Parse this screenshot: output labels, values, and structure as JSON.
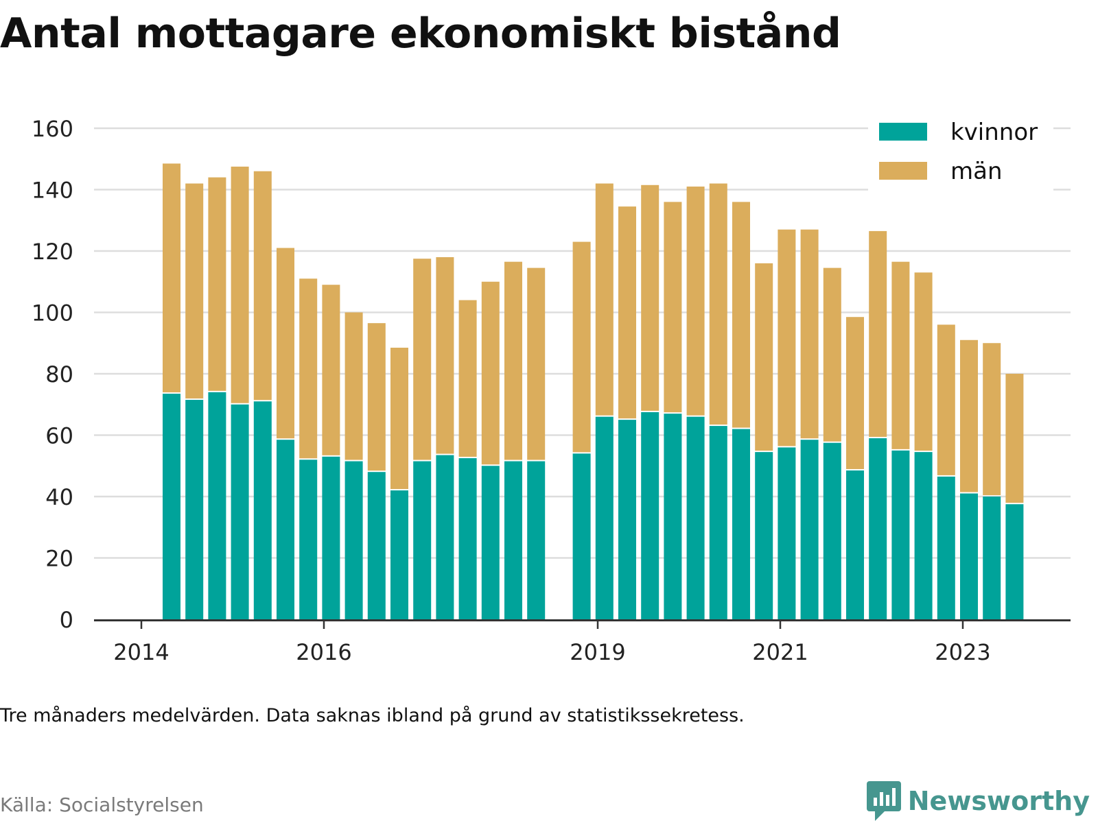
{
  "title": "Antal mottagare ekonomiskt bistånd",
  "note": "Tre månaders medelvärden. Data saknas ibland på grund av statistikssekretess.",
  "source": "Källa: Socialstyrelsen",
  "brand": "Newsworthy",
  "colors": {
    "kvinnor": "#00a39a",
    "man": "#dbad5c",
    "grid": "#dddddd",
    "axis": "#333333"
  },
  "chart_data": {
    "type": "bar",
    "stacked": true,
    "legend_position": "top-right",
    "grid": true,
    "ylim": [
      0,
      160
    ],
    "yticks": [
      0,
      20,
      40,
      60,
      80,
      100,
      120,
      140,
      160
    ],
    "xticks": [
      "2014",
      "2016",
      "2019",
      "2021",
      "2023"
    ],
    "series": [
      {
        "name": "kvinnor",
        "values": [
          73.5,
          71.5,
          74,
          70,
          71,
          58.5,
          52,
          53,
          51.5,
          48,
          42,
          51.5,
          53.5,
          52.5,
          50,
          51.5,
          51.5,
          null,
          54,
          66,
          65,
          67.5,
          67,
          66,
          63,
          62,
          54.5,
          56,
          58.5,
          57.5,
          48.5,
          59,
          55,
          54.5,
          46.5,
          41,
          40,
          37.5
        ]
      },
      {
        "name": "män",
        "values": [
          75,
          70.5,
          70,
          77.5,
          75,
          62.5,
          59,
          56,
          48.5,
          48.5,
          46.5,
          66,
          64.5,
          51.5,
          60,
          65,
          63,
          null,
          69,
          76,
          69.5,
          74,
          69,
          75,
          79,
          74,
          61.5,
          71,
          68.5,
          57,
          50,
          67.5,
          61.5,
          58.5,
          49.5,
          50,
          50,
          42.5
        ]
      }
    ],
    "totals": [
      148.5,
      142,
      144,
      147.5,
      146,
      121,
      111,
      109,
      100,
      96.5,
      88.5,
      117.5,
      118,
      104,
      110,
      116.5,
      114.5,
      null,
      123,
      142,
      134.5,
      141.5,
      136,
      141,
      142,
      136,
      116,
      127,
      127,
      114.5,
      98.5,
      126.5,
      116.5,
      113,
      96,
      91,
      90,
      80
    ]
  }
}
